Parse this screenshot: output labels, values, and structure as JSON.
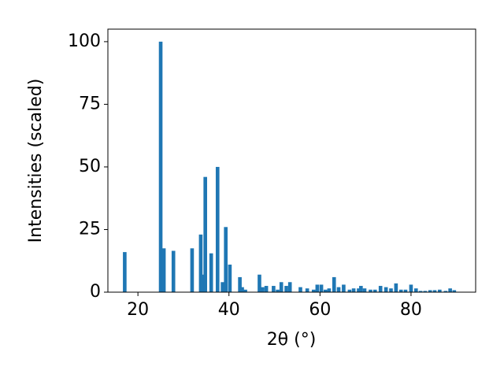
{
  "chart_data": {
    "type": "bar",
    "xlabel": "2θ (°)",
    "ylabel": "Intensities (scaled)",
    "color": "#1f77b4",
    "x": [
      17.1,
      25.0,
      25.7,
      27.8,
      31.9,
      33.8,
      34.3,
      34.8,
      36.1,
      37.5,
      38.6,
      39.3,
      40.2,
      42.4,
      42.9,
      43.6,
      46.7,
      47.4,
      48.2,
      49.8,
      50.7,
      51.5,
      52.6,
      53.4,
      55.7,
      57.2,
      58.6,
      59.4,
      60.3,
      61.2,
      62.0,
      63.1,
      64.1,
      65.2,
      66.5,
      67.4,
      68.5,
      69.0,
      69.8,
      71.1,
      72.1,
      73.3,
      74.5,
      75.6,
      76.7,
      77.8,
      78.8,
      80.0,
      81.1,
      82.1,
      83.1,
      84.2,
      85.2,
      86.3,
      87.6,
      88.6,
      89.5
    ],
    "values": [
      16,
      100,
      17.5,
      16.5,
      17.5,
      23,
      7,
      46,
      15.5,
      50,
      4,
      26,
      11,
      6,
      2,
      1,
      7,
      2,
      2.5,
      2.5,
      1,
      4,
      2.5,
      4,
      2,
      1.5,
      1,
      3,
      3,
      1,
      1.5,
      6,
      2,
      3,
      1,
      1.5,
      1.5,
      2.5,
      1.5,
      1,
      1,
      2.5,
      2,
      1.5,
      3.5,
      1,
      1,
      3,
      1.5,
      0.5,
      0.5,
      0.8,
      0.8,
      1,
      0.5,
      1.5,
      0.8
    ],
    "xlim": [
      13.4,
      94.2
    ],
    "ylim": [
      0,
      105
    ],
    "xticks": [
      20,
      40,
      60,
      80
    ],
    "yticks": [
      0,
      25,
      50,
      75,
      100
    ]
  }
}
